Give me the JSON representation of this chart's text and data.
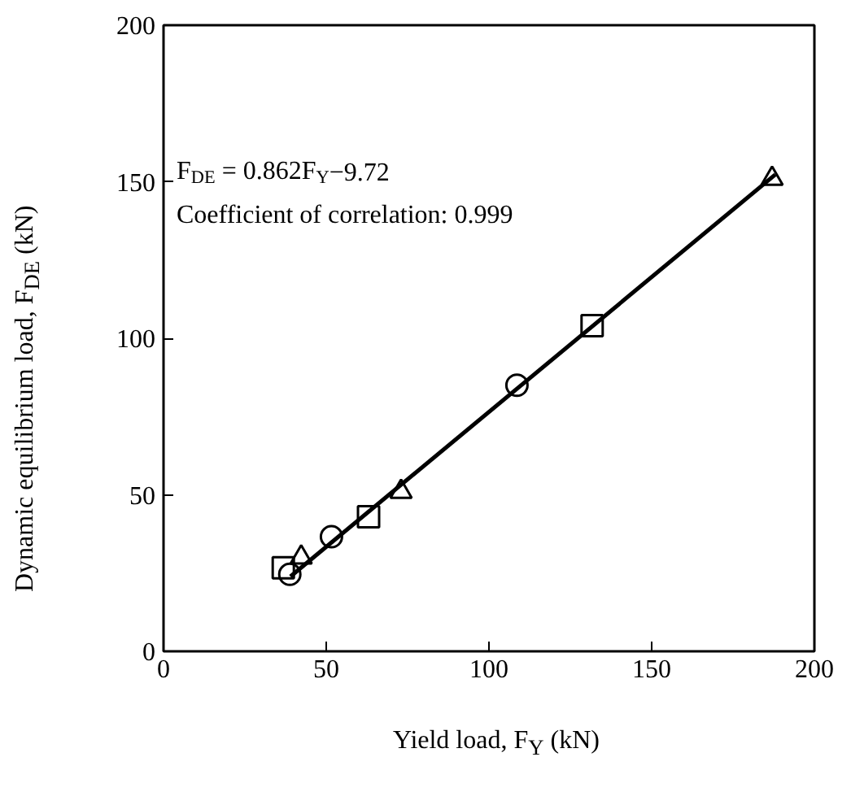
{
  "chart_data": {
    "type": "scatter",
    "xlabel": "Yield load, F$_{Y}$ (kN)",
    "ylabel": "Dynamic equilibrium load, F$_{DE}$ (kN)",
    "xlim": [
      0,
      200
    ],
    "ylim": [
      0,
      200
    ],
    "xticks": [
      0,
      50,
      100,
      150,
      200
    ],
    "yticks": [
      0,
      50,
      100,
      150,
      200
    ],
    "grid": false,
    "annotations": [
      "F$_{DE}$ = 0.862F$_{Y}$−9.72",
      "Coefficient of correlation: 0.999"
    ],
    "series": [
      {
        "marker": "circle",
        "color": "#000000",
        "x": [
          38.8,
          51.6,
          108.6
        ],
        "values": [
          24.6,
          36.6,
          85
        ]
      },
      {
        "marker": "square",
        "color": "#000000",
        "x": [
          36.8,
          63,
          131.7
        ],
        "values": [
          26.7,
          43,
          104
        ]
      },
      {
        "marker": "triangle",
        "color": "#000000",
        "x": [
          42.3,
          73,
          187
        ],
        "values": [
          30,
          51,
          151
        ]
      },
      {
        "type": "line",
        "color": "#000000",
        "line_style": "solid",
        "marker": "none",
        "x": [
          39,
          188
        ],
        "values": [
          23.9,
          152.3
        ]
      }
    ]
  }
}
